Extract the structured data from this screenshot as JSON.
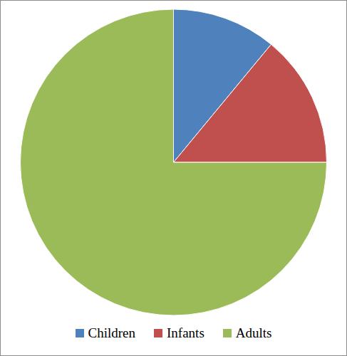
{
  "chart_data": {
    "type": "pie",
    "categories": [
      "Children",
      "Infants",
      "Adults"
    ],
    "values": [
      11,
      14,
      75
    ],
    "colors": [
      "#4f81bd",
      "#c0504d",
      "#9bbb59"
    ],
    "legend": "bottom"
  }
}
